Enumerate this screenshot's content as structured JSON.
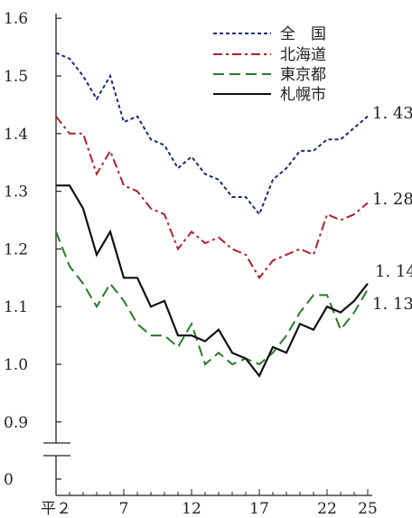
{
  "chart_data": {
    "type": "line",
    "title": "",
    "xlabel": "",
    "ylabel": "",
    "x": [
      "平2",
      "3",
      "4",
      "5",
      "6",
      "7",
      "8",
      "9",
      "10",
      "11",
      "12",
      "13",
      "14",
      "15",
      "16",
      "17",
      "18",
      "19",
      "20",
      "21",
      "22",
      "23",
      "24",
      "25"
    ],
    "x_tick_labels": [
      "平２",
      "7",
      "12",
      "17",
      "22",
      "25"
    ],
    "y_tick_labels": [
      "0",
      "0.9",
      "1.0",
      "1.1",
      "1.2",
      "1.3",
      "1.4",
      "1.5",
      "1.6"
    ],
    "ylim": [
      0.9,
      1.6
    ],
    "y_axis_break": true,
    "grid": false,
    "legend_position": "top-right",
    "series": [
      {
        "name": "全　国",
        "color": "#1a2a7a",
        "dash": "dotted",
        "values": [
          1.54,
          1.53,
          1.5,
          1.46,
          1.5,
          1.42,
          1.43,
          1.39,
          1.38,
          1.34,
          1.36,
          1.33,
          1.32,
          1.29,
          1.29,
          1.26,
          1.32,
          1.34,
          1.37,
          1.37,
          1.39,
          1.39,
          1.41,
          1.43
        ],
        "end_label": "1. 43"
      },
      {
        "name": "北海道",
        "color": "#b0202a",
        "dash": "dashdot",
        "values": [
          1.43,
          1.4,
          1.4,
          1.33,
          1.37,
          1.31,
          1.3,
          1.27,
          1.26,
          1.2,
          1.23,
          1.21,
          1.22,
          1.2,
          1.19,
          1.15,
          1.18,
          1.19,
          1.2,
          1.19,
          1.26,
          1.25,
          1.26,
          1.28
        ],
        "end_label": "1. 28"
      },
      {
        "name": "東京都",
        "color": "#2a7a2a",
        "dash": "dashed",
        "values": [
          1.23,
          1.17,
          1.14,
          1.1,
          1.14,
          1.11,
          1.07,
          1.05,
          1.05,
          1.03,
          1.07,
          1.0,
          1.02,
          1.0,
          1.01,
          1.0,
          1.02,
          1.05,
          1.09,
          1.12,
          1.12,
          1.06,
          1.09,
          1.13
        ],
        "end_label": "1. 13"
      },
      {
        "name": "札幌市",
        "color": "#111111",
        "dash": "solid",
        "values": [
          1.31,
          1.31,
          1.27,
          1.19,
          1.23,
          1.15,
          1.15,
          1.1,
          1.11,
          1.05,
          1.05,
          1.04,
          1.06,
          1.02,
          1.01,
          0.98,
          1.03,
          1.02,
          1.07,
          1.06,
          1.1,
          1.09,
          1.11,
          1.14
        ],
        "end_label": "1. 14"
      }
    ]
  }
}
